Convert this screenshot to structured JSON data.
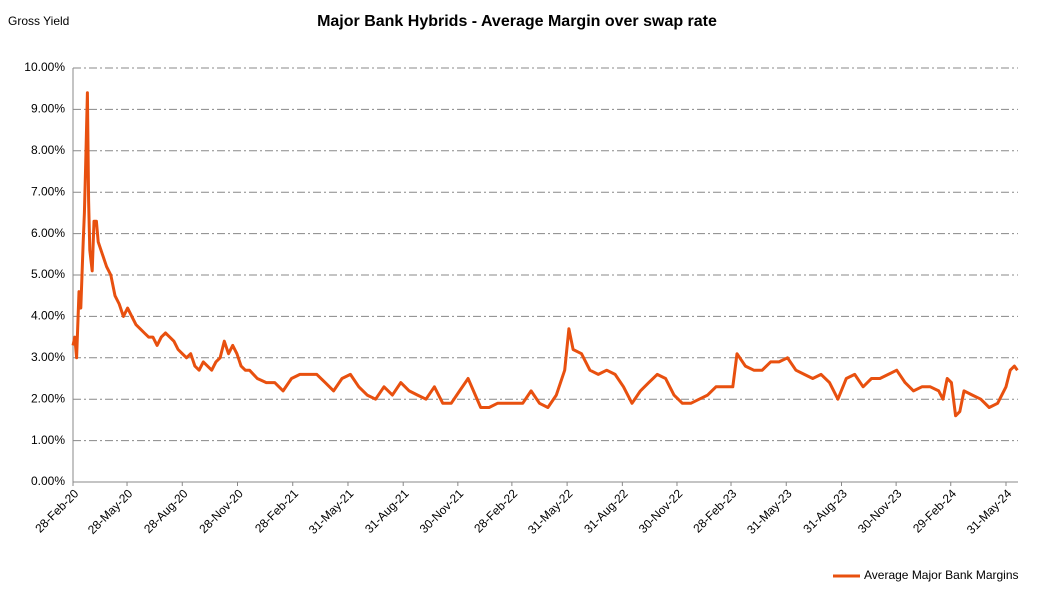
{
  "chart_data": {
    "type": "line",
    "title": "Major Bank Hybrids - Average Margin over swap rate",
    "y_label": "Gross Yield",
    "x": [
      "2020-02-28",
      "2020-03-02",
      "2020-03-05",
      "2020-03-09",
      "2020-03-12",
      "2020-03-16",
      "2020-03-18",
      "2020-03-20",
      "2020-03-23",
      "2020-03-25",
      "2020-03-27",
      "2020-03-31",
      "2020-04-03",
      "2020-04-07",
      "2020-04-10",
      "2020-04-17",
      "2020-04-24",
      "2020-05-01",
      "2020-05-08",
      "2020-05-15",
      "2020-05-22",
      "2020-05-29",
      "2020-06-05",
      "2020-06-12",
      "2020-06-19",
      "2020-06-26",
      "2020-07-03",
      "2020-07-10",
      "2020-07-17",
      "2020-07-24",
      "2020-07-31",
      "2020-08-07",
      "2020-08-14",
      "2020-08-21",
      "2020-08-28",
      "2020-09-04",
      "2020-09-11",
      "2020-09-18",
      "2020-09-25",
      "2020-10-02",
      "2020-10-09",
      "2020-10-16",
      "2020-10-23",
      "2020-10-30",
      "2020-11-06",
      "2020-11-13",
      "2020-11-20",
      "2020-11-27",
      "2020-12-04",
      "2020-12-11",
      "2020-12-18",
      "2020-12-31",
      "2021-01-15",
      "2021-01-29",
      "2021-02-12",
      "2021-02-26",
      "2021-03-12",
      "2021-03-26",
      "2021-04-09",
      "2021-04-23",
      "2021-05-07",
      "2021-05-21",
      "2021-06-04",
      "2021-06-18",
      "2021-07-02",
      "2021-07-16",
      "2021-07-30",
      "2021-08-13",
      "2021-08-27",
      "2021-09-10",
      "2021-09-24",
      "2021-10-08",
      "2021-10-22",
      "2021-11-05",
      "2021-11-19",
      "2021-12-03",
      "2021-12-17",
      "2022-01-07",
      "2022-01-21",
      "2022-02-04",
      "2022-02-18",
      "2022-03-04",
      "2022-03-18",
      "2022-04-01",
      "2022-04-15",
      "2022-04-29",
      "2022-05-13",
      "2022-05-27",
      "2022-06-03",
      "2022-06-10",
      "2022-06-24",
      "2022-07-08",
      "2022-07-22",
      "2022-08-05",
      "2022-08-19",
      "2022-09-02",
      "2022-09-16",
      "2022-09-30",
      "2022-10-14",
      "2022-10-28",
      "2022-11-11",
      "2022-11-25",
      "2022-12-09",
      "2022-12-23",
      "2023-01-06",
      "2023-01-20",
      "2023-02-03",
      "2023-02-17",
      "2023-03-03",
      "2023-03-10",
      "2023-03-24",
      "2023-04-07",
      "2023-04-21",
      "2023-05-05",
      "2023-05-19",
      "2023-06-02",
      "2023-06-16",
      "2023-06-30",
      "2023-07-14",
      "2023-07-28",
      "2023-08-11",
      "2023-08-25",
      "2023-09-08",
      "2023-09-22",
      "2023-10-06",
      "2023-10-20",
      "2023-11-03",
      "2023-11-17",
      "2023-12-01",
      "2023-12-15",
      "2023-12-29",
      "2024-01-12",
      "2024-01-26",
      "2024-02-09",
      "2024-02-16",
      "2024-02-23",
      "2024-03-01",
      "2024-03-08",
      "2024-03-15",
      "2024-03-22",
      "2024-04-05",
      "2024-04-19",
      "2024-05-03",
      "2024-05-17",
      "2024-05-31",
      "2024-06-07",
      "2024-06-14",
      "2024-06-19"
    ],
    "series": [
      {
        "name": "Average Major Bank Margins",
        "color": "#e8500f",
        "values": [
          3.3,
          3.5,
          3.0,
          4.6,
          4.2,
          5.8,
          6.5,
          7.6,
          9.4,
          6.8,
          5.6,
          5.1,
          6.3,
          6.3,
          5.8,
          5.5,
          5.2,
          5.0,
          4.5,
          4.3,
          4.0,
          4.2,
          4.0,
          3.8,
          3.7,
          3.6,
          3.5,
          3.5,
          3.3,
          3.5,
          3.6,
          3.5,
          3.4,
          3.2,
          3.1,
          3.0,
          3.1,
          2.8,
          2.7,
          2.9,
          2.8,
          2.7,
          2.9,
          3.0,
          3.4,
          3.1,
          3.3,
          3.1,
          2.8,
          2.7,
          2.7,
          2.5,
          2.4,
          2.4,
          2.2,
          2.5,
          2.6,
          2.6,
          2.6,
          2.4,
          2.2,
          2.5,
          2.6,
          2.3,
          2.1,
          2.0,
          2.3,
          2.1,
          2.4,
          2.2,
          2.1,
          2.0,
          2.3,
          1.9,
          1.9,
          2.2,
          2.5,
          1.8,
          1.8,
          1.9,
          1.9,
          1.9,
          1.9,
          2.2,
          1.9,
          1.8,
          2.1,
          2.7,
          3.7,
          3.2,
          3.1,
          2.7,
          2.6,
          2.7,
          2.6,
          2.3,
          1.9,
          2.2,
          2.4,
          2.6,
          2.5,
          2.1,
          1.9,
          1.9,
          2.0,
          2.1,
          2.3,
          2.3,
          2.3,
          3.1,
          2.8,
          2.7,
          2.7,
          2.9,
          2.9,
          3.0,
          2.7,
          2.6,
          2.5,
          2.6,
          2.4,
          2.0,
          2.5,
          2.6,
          2.3,
          2.5,
          2.5,
          2.6,
          2.7,
          2.4,
          2.2,
          2.3,
          2.3,
          2.2,
          2.0,
          2.5,
          2.4,
          1.6,
          1.7,
          2.2,
          2.1,
          2.0,
          1.8,
          1.9,
          2.3,
          2.7,
          2.8,
          2.7
        ]
      }
    ],
    "xlim": [
      "2020-02-28",
      "2024-06-20"
    ],
    "xticks": [
      {
        "value": "2020-02-28",
        "label": "28-Feb-20"
      },
      {
        "value": "2020-05-28",
        "label": "28-May-20"
      },
      {
        "value": "2020-08-28",
        "label": "28-Aug-20"
      },
      {
        "value": "2020-11-28",
        "label": "28-Nov-20"
      },
      {
        "value": "2021-02-28",
        "label": "28-Feb-21"
      },
      {
        "value": "2021-05-31",
        "label": "31-May-21"
      },
      {
        "value": "2021-08-31",
        "label": "31-Aug-21"
      },
      {
        "value": "2021-11-30",
        "label": "30-Nov-21"
      },
      {
        "value": "2022-02-28",
        "label": "28-Feb-22"
      },
      {
        "value": "2022-05-31",
        "label": "31-May-22"
      },
      {
        "value": "2022-08-31",
        "label": "31-Aug-22"
      },
      {
        "value": "2022-11-30",
        "label": "30-Nov-22"
      },
      {
        "value": "2023-02-28",
        "label": "28-Feb-23"
      },
      {
        "value": "2023-05-31",
        "label": "31-May-23"
      },
      {
        "value": "2023-08-31",
        "label": "31-Aug-23"
      },
      {
        "value": "2023-11-30",
        "label": "30-Nov-23"
      },
      {
        "value": "2024-02-29",
        "label": "29-Feb-24"
      },
      {
        "value": "2024-05-31",
        "label": "31-May-24"
      }
    ],
    "ylim": [
      0,
      10
    ],
    "yticks": [
      {
        "value": 0,
        "label": "0.00%"
      },
      {
        "value": 1,
        "label": "1.00%"
      },
      {
        "value": 2,
        "label": "2.00%"
      },
      {
        "value": 3,
        "label": "3.00%"
      },
      {
        "value": 4,
        "label": "4.00%"
      },
      {
        "value": 5,
        "label": "5.00%"
      },
      {
        "value": 6,
        "label": "6.00%"
      },
      {
        "value": 7,
        "label": "7.00%"
      },
      {
        "value": 8,
        "label": "8.00%"
      },
      {
        "value": 9,
        "label": "9.00%"
      },
      {
        "value": 10,
        "label": "10.00%"
      }
    ],
    "grid": true,
    "legend": "bottom-right"
  }
}
